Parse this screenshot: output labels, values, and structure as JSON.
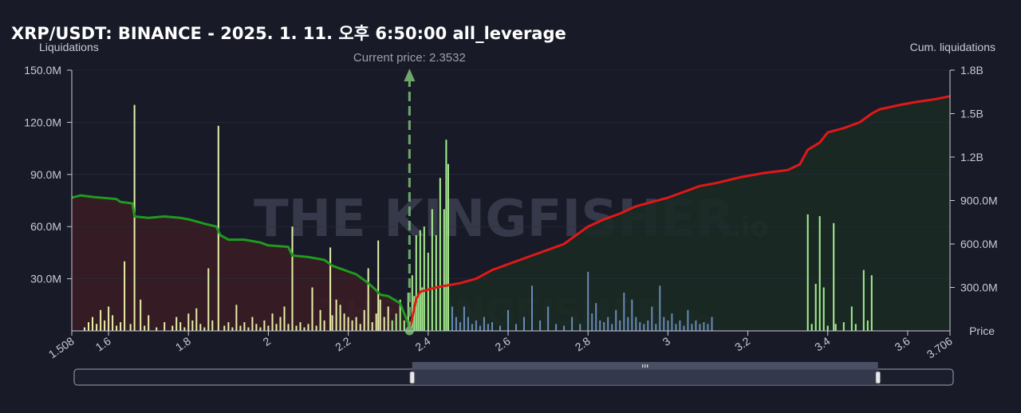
{
  "title": "XRP/USDT: BINANCE - 2025. 1. 11. 오후 6:50:00 all_leverage",
  "watermark": {
    "text": "THE KINGFISHER",
    "suffix": ".io"
  },
  "colors": {
    "background": "#181a27",
    "long_cum_line": "#1f9a1f",
    "long_fill": "#3a1c25",
    "short_cum_line": "#e01818",
    "short_fill": "#1a2a24",
    "below_bar": "#e8f0a8",
    "near_bar": "#a8f090",
    "above_bar": "#6a8ab8",
    "current_price": "#6fa86a"
  },
  "chart_data": {
    "type": "bar",
    "ylabel_left": "Liquidations",
    "ylabel_right": "Cum. liquidations",
    "xlabel": "Price",
    "xlim": [
      1.508,
      3.706
    ],
    "x_ticks": [
      {
        "value": 1.508,
        "label": "1.508"
      },
      {
        "value": 1.6,
        "label": "1.6"
      },
      {
        "value": 1.8,
        "label": "1.8"
      },
      {
        "value": 2.0,
        "label": "2"
      },
      {
        "value": 2.2,
        "label": "2.2"
      },
      {
        "value": 2.4,
        "label": "2.4"
      },
      {
        "value": 2.6,
        "label": "2.6"
      },
      {
        "value": 2.8,
        "label": "2.8"
      },
      {
        "value": 3.0,
        "label": "3"
      },
      {
        "value": 3.2,
        "label": "3.2"
      },
      {
        "value": 3.4,
        "label": "3.4"
      },
      {
        "value": 3.6,
        "label": "3.6"
      },
      {
        "value": 3.706,
        "label": "3.706"
      }
    ],
    "ylim_left": [
      0,
      150000000
    ],
    "y_ticks_left": [
      {
        "value": 150000000,
        "label": "150.0M"
      },
      {
        "value": 120000000,
        "label": "120.0M"
      },
      {
        "value": 90000000,
        "label": "90.0M"
      },
      {
        "value": 60000000,
        "label": "60.0M"
      },
      {
        "value": 30000000,
        "label": "30.0M"
      }
    ],
    "ylim_right": [
      0,
      1800000000
    ],
    "y_ticks_right": [
      {
        "value": 1800000000,
        "label": "1.8B"
      },
      {
        "value": 1500000000,
        "label": "1.5B"
      },
      {
        "value": 1200000000,
        "label": "1.2B"
      },
      {
        "value": 900000000,
        "label": "900.0M"
      },
      {
        "value": 600000000,
        "label": "600.0M"
      },
      {
        "value": 300000000,
        "label": "300.0M"
      }
    ],
    "current_price": 2.3532,
    "current_price_label": "Current price: 2.3532",
    "bars": [
      [
        1.54,
        2000000
      ],
      [
        1.55,
        5000000
      ],
      [
        1.56,
        8000000
      ],
      [
        1.57,
        4000000
      ],
      [
        1.58,
        12000000
      ],
      [
        1.59,
        6000000
      ],
      [
        1.6,
        14000000
      ],
      [
        1.61,
        9000000
      ],
      [
        1.62,
        3000000
      ],
      [
        1.63,
        5000000
      ],
      [
        1.64,
        40000000
      ],
      [
        1.655,
        4000000
      ],
      [
        1.665,
        130000000
      ],
      [
        1.68,
        18000000
      ],
      [
        1.69,
        3000000
      ],
      [
        1.7,
        9000000
      ],
      [
        1.72,
        2000000
      ],
      [
        1.74,
        5000000
      ],
      [
        1.76,
        3000000
      ],
      [
        1.77,
        8000000
      ],
      [
        1.78,
        5000000
      ],
      [
        1.79,
        2000000
      ],
      [
        1.8,
        10000000
      ],
      [
        1.81,
        6000000
      ],
      [
        1.82,
        13000000
      ],
      [
        1.83,
        4000000
      ],
      [
        1.84,
        2000000
      ],
      [
        1.85,
        36000000
      ],
      [
        1.86,
        6000000
      ],
      [
        1.875,
        118000000
      ],
      [
        1.89,
        3000000
      ],
      [
        1.9,
        5000000
      ],
      [
        1.91,
        2000000
      ],
      [
        1.92,
        15000000
      ],
      [
        1.93,
        3000000
      ],
      [
        1.94,
        5000000
      ],
      [
        1.95,
        2000000
      ],
      [
        1.96,
        8000000
      ],
      [
        1.97,
        4000000
      ],
      [
        1.98,
        2000000
      ],
      [
        1.99,
        6000000
      ],
      [
        2.0,
        3000000
      ],
      [
        2.01,
        10000000
      ],
      [
        2.02,
        4000000
      ],
      [
        2.03,
        8000000
      ],
      [
        2.04,
        14000000
      ],
      [
        2.05,
        4000000
      ],
      [
        2.06,
        60000000
      ],
      [
        2.07,
        3000000
      ],
      [
        2.08,
        5000000
      ],
      [
        2.09,
        2000000
      ],
      [
        2.1,
        4000000
      ],
      [
        2.11,
        25000000
      ],
      [
        2.12,
        3000000
      ],
      [
        2.13,
        12000000
      ],
      [
        2.14,
        6000000
      ],
      [
        2.155,
        48000000
      ],
      [
        2.16,
        9000000
      ],
      [
        2.17,
        18000000
      ],
      [
        2.18,
        15000000
      ],
      [
        2.19,
        10000000
      ],
      [
        2.2,
        8000000
      ],
      [
        2.21,
        6000000
      ],
      [
        2.22,
        8000000
      ],
      [
        2.23,
        4000000
      ],
      [
        2.24,
        12000000
      ],
      [
        2.25,
        36000000
      ],
      [
        2.26,
        5000000
      ],
      [
        2.27,
        10000000
      ],
      [
        2.275,
        52000000
      ],
      [
        2.28,
        18000000
      ],
      [
        2.29,
        8000000
      ],
      [
        2.3,
        14000000
      ],
      [
        2.31,
        6000000
      ],
      [
        2.32,
        10000000
      ],
      [
        2.33,
        18000000
      ],
      [
        2.34,
        6000000
      ],
      [
        2.35,
        22000000
      ],
      [
        2.36,
        32000000
      ],
      [
        2.365,
        20000000
      ],
      [
        2.37,
        55000000
      ],
      [
        2.375,
        20000000
      ],
      [
        2.38,
        58000000
      ],
      [
        2.385,
        25000000
      ],
      [
        2.39,
        60000000
      ],
      [
        2.4,
        45000000
      ],
      [
        2.41,
        70000000
      ],
      [
        2.42,
        55000000
      ],
      [
        2.43,
        88000000
      ],
      [
        2.44,
        70000000
      ],
      [
        2.445,
        110000000
      ],
      [
        2.45,
        96000000
      ],
      [
        2.46,
        14000000
      ],
      [
        2.47,
        8000000
      ],
      [
        2.48,
        5000000
      ],
      [
        2.49,
        14000000
      ],
      [
        2.5,
        8000000
      ],
      [
        2.51,
        4000000
      ],
      [
        2.52,
        6000000
      ],
      [
        2.53,
        3000000
      ],
      [
        2.54,
        8000000
      ],
      [
        2.55,
        4000000
      ],
      [
        2.56,
        5000000
      ],
      [
        2.58,
        3000000
      ],
      [
        2.6,
        12000000
      ],
      [
        2.62,
        4000000
      ],
      [
        2.64,
        8000000
      ],
      [
        2.66,
        26000000
      ],
      [
        2.68,
        6000000
      ],
      [
        2.7,
        14000000
      ],
      [
        2.72,
        4000000
      ],
      [
        2.74,
        3000000
      ],
      [
        2.76,
        8000000
      ],
      [
        2.78,
        4000000
      ],
      [
        2.8,
        34000000
      ],
      [
        2.81,
        10000000
      ],
      [
        2.82,
        16000000
      ],
      [
        2.83,
        6000000
      ],
      [
        2.84,
        5000000
      ],
      [
        2.85,
        8000000
      ],
      [
        2.86,
        4000000
      ],
      [
        2.87,
        12000000
      ],
      [
        2.88,
        6000000
      ],
      [
        2.89,
        22000000
      ],
      [
        2.9,
        8000000
      ],
      [
        2.91,
        18000000
      ],
      [
        2.92,
        8000000
      ],
      [
        2.93,
        5000000
      ],
      [
        2.94,
        4000000
      ],
      [
        2.95,
        6000000
      ],
      [
        2.96,
        14000000
      ],
      [
        2.97,
        4000000
      ],
      [
        2.98,
        26000000
      ],
      [
        2.99,
        8000000
      ],
      [
        3.0,
        6000000
      ],
      [
        3.01,
        10000000
      ],
      [
        3.02,
        4000000
      ],
      [
        3.03,
        6000000
      ],
      [
        3.04,
        3000000
      ],
      [
        3.05,
        12000000
      ],
      [
        3.06,
        4000000
      ],
      [
        3.07,
        6000000
      ],
      [
        3.08,
        4000000
      ],
      [
        3.09,
        5000000
      ],
      [
        3.1,
        4000000
      ],
      [
        3.11,
        8000000
      ],
      [
        3.35,
        67000000
      ],
      [
        3.36,
        4000000
      ],
      [
        3.37,
        27000000
      ],
      [
        3.38,
        66000000
      ],
      [
        3.39,
        25000000
      ],
      [
        3.4,
        3000000
      ],
      [
        3.415,
        62000000
      ],
      [
        3.42,
        4000000
      ],
      [
        3.44,
        5000000
      ],
      [
        3.46,
        14000000
      ],
      [
        3.47,
        4000000
      ],
      [
        3.49,
        35000000
      ],
      [
        3.5,
        6000000
      ],
      [
        3.51,
        32000000
      ]
    ],
    "series": [
      {
        "name": "long_cum",
        "points": [
          [
            1.508,
            920000000
          ],
          [
            1.53,
            935000000
          ],
          [
            1.56,
            925000000
          ],
          [
            1.6,
            915000000
          ],
          [
            1.62,
            910000000
          ],
          [
            1.63,
            890000000
          ],
          [
            1.66,
            880000000
          ],
          [
            1.665,
            790000000
          ],
          [
            1.7,
            780000000
          ],
          [
            1.74,
            790000000
          ],
          [
            1.78,
            780000000
          ],
          [
            1.8,
            770000000
          ],
          [
            1.84,
            740000000
          ],
          [
            1.87,
            720000000
          ],
          [
            1.88,
            660000000
          ],
          [
            1.9,
            630000000
          ],
          [
            1.94,
            630000000
          ],
          [
            1.98,
            610000000
          ],
          [
            2.0,
            590000000
          ],
          [
            2.05,
            580000000
          ],
          [
            2.06,
            520000000
          ],
          [
            2.1,
            510000000
          ],
          [
            2.14,
            490000000
          ],
          [
            2.16,
            450000000
          ],
          [
            2.19,
            420000000
          ],
          [
            2.22,
            390000000
          ],
          [
            2.25,
            330000000
          ],
          [
            2.27,
            280000000
          ],
          [
            2.28,
            250000000
          ],
          [
            2.3,
            240000000
          ],
          [
            2.33,
            190000000
          ],
          [
            2.34,
            120000000
          ],
          [
            2.35,
            50000000
          ],
          [
            2.3532,
            0
          ]
        ]
      },
      {
        "name": "short_cum",
        "points": [
          [
            2.3532,
            0
          ],
          [
            2.37,
            220000000
          ],
          [
            2.38,
            270000000
          ],
          [
            2.42,
            300000000
          ],
          [
            2.48,
            330000000
          ],
          [
            2.52,
            360000000
          ],
          [
            2.56,
            420000000
          ],
          [
            2.6,
            460000000
          ],
          [
            2.66,
            520000000
          ],
          [
            2.7,
            560000000
          ],
          [
            2.74,
            600000000
          ],
          [
            2.77,
            660000000
          ],
          [
            2.8,
            720000000
          ],
          [
            2.84,
            770000000
          ],
          [
            2.88,
            810000000
          ],
          [
            2.92,
            860000000
          ],
          [
            2.96,
            890000000
          ],
          [
            3.0,
            920000000
          ],
          [
            3.04,
            960000000
          ],
          [
            3.08,
            1000000000
          ],
          [
            3.12,
            1020000000
          ],
          [
            3.18,
            1060000000
          ],
          [
            3.24,
            1090000000
          ],
          [
            3.3,
            1110000000
          ],
          [
            3.33,
            1150000000
          ],
          [
            3.35,
            1250000000
          ],
          [
            3.38,
            1300000000
          ],
          [
            3.4,
            1370000000
          ],
          [
            3.44,
            1400000000
          ],
          [
            3.48,
            1440000000
          ],
          [
            3.51,
            1500000000
          ],
          [
            3.53,
            1530000000
          ],
          [
            3.58,
            1560000000
          ],
          [
            3.62,
            1580000000
          ],
          [
            3.67,
            1600000000
          ],
          [
            3.706,
            1620000000
          ]
        ]
      }
    ]
  },
  "range_slider": {
    "window_start": 2.3532,
    "window_end": 3.518
  }
}
